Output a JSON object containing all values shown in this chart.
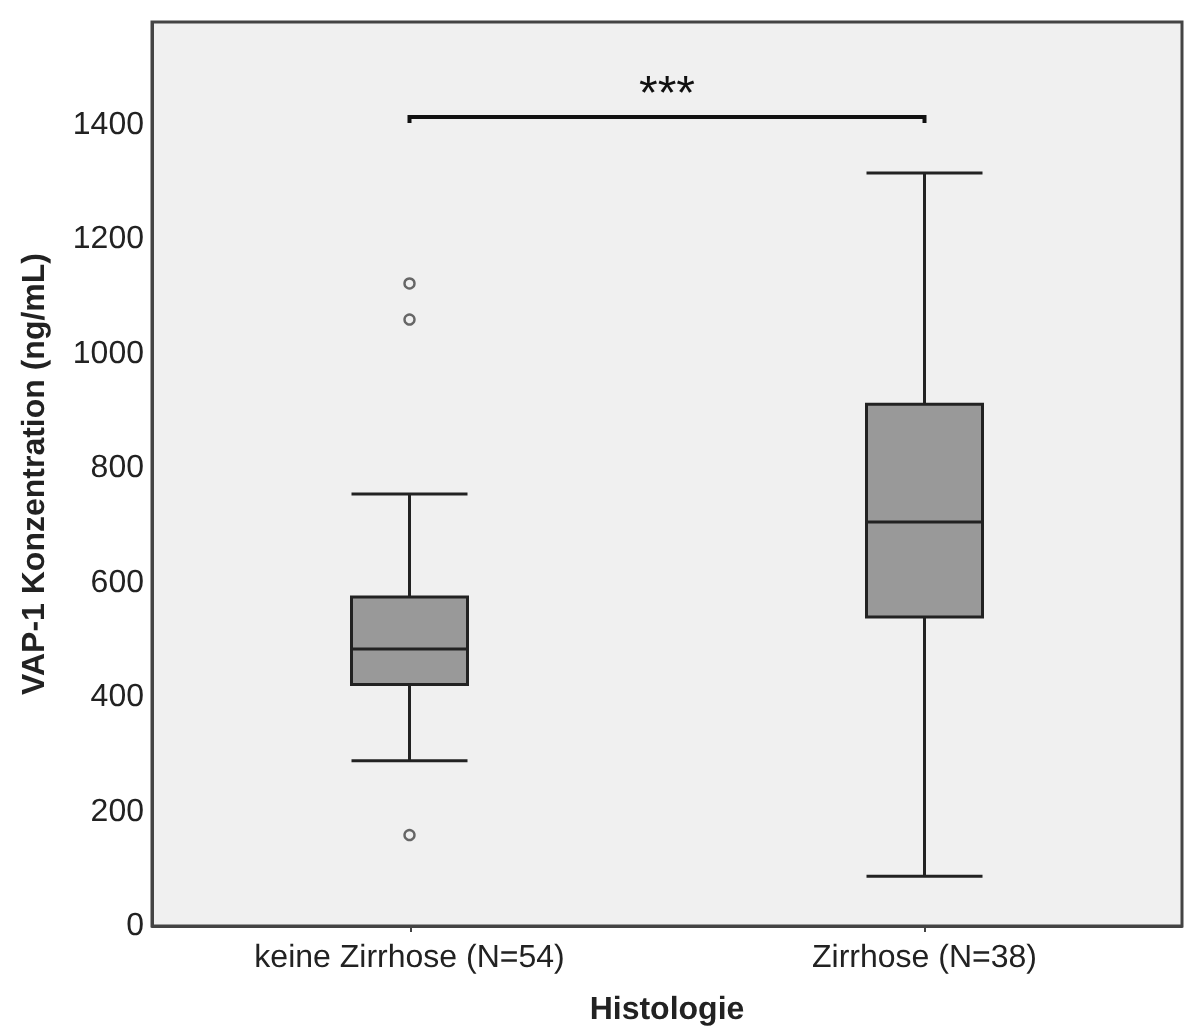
{
  "chart_data": {
    "type": "box",
    "xlabel": "Histologie",
    "ylabel": "VAP-1 Konzentration (ng/mL)",
    "categories": [
      "keine Zirrhose (N=54)",
      "Zirrhose (N=38)"
    ],
    "color": "#999999",
    "boxes": [
      {
        "low": 289,
        "q1": 422,
        "median": 484,
        "q3": 575,
        "high": 755,
        "outliers": [
          1123,
          1060,
          159
        ]
      },
      {
        "low": 87,
        "q1": 540,
        "median": 706,
        "q3": 912,
        "high": 1316
      }
    ],
    "ylim": [
      0,
      1580
    ],
    "yticks": [
      0,
      200,
      400,
      600,
      800,
      1000,
      1200,
      1400
    ],
    "grid": false,
    "annotations": [
      "***"
    ]
  }
}
